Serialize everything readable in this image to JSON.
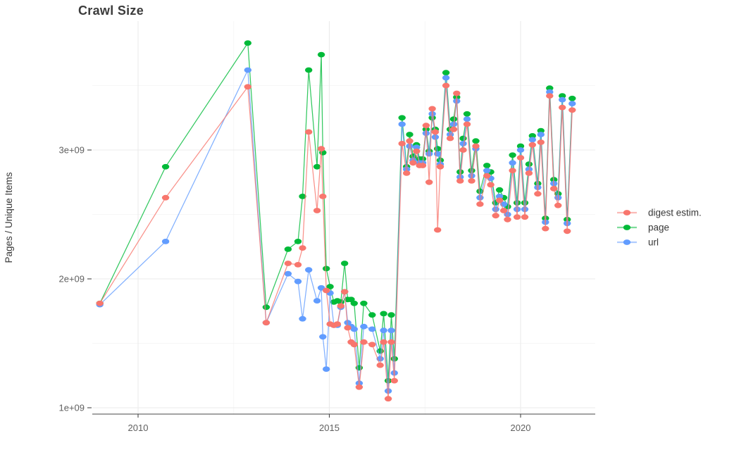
{
  "title": "Crawl Size",
  "y_axis": {
    "label": "Pages / Unique Items",
    "ticks": [
      {
        "label": "1e+09",
        "value": 1.0
      },
      {
        "label": "2e+09",
        "value": 2.0
      },
      {
        "label": "3e+09",
        "value": 3.0
      }
    ],
    "minor_ticks": [
      1.5,
      2.5,
      3.5
    ]
  },
  "x_axis": {
    "ticks": [
      {
        "label": "2010",
        "year": 2010
      },
      {
        "label": "2015",
        "year": 2015
      },
      {
        "label": "2020",
        "year": 2020
      }
    ],
    "minor_ticks": [
      2012.5,
      2017.5
    ]
  },
  "legend": {
    "position": "right",
    "items": [
      {
        "label": "digest estim.",
        "color": "#F8766D"
      },
      {
        "label": "page",
        "color": "#00BA38"
      },
      {
        "label": "url",
        "color": "#619CFF"
      }
    ]
  },
  "colors": {
    "grid_major": "#ebebeb",
    "grid_minor": "#f3f3f3",
    "axis_line": "#474747",
    "tick_mark": "#474747"
  },
  "chart_data": {
    "type": "line",
    "title": "Crawl Size",
    "xlabel": "",
    "ylabel": "Pages / Unique Items",
    "value_scale": 1000000000,
    "value_unit": "items (values given in billions, i.e. 1e+09)",
    "xlim": [
      2008.7,
      2022.0
    ],
    "ylim": [
      0.88,
      4.0
    ],
    "grid": true,
    "legend_position": "right",
    "x_years": [
      2009.0,
      2010.72,
      2012.87,
      2013.35,
      2013.92,
      2014.18,
      2014.3,
      2014.46,
      2014.68,
      2014.79,
      2014.83,
      2014.92,
      2015.02,
      2015.12,
      2015.21,
      2015.3,
      2015.4,
      2015.48,
      2015.57,
      2015.65,
      2015.78,
      2015.9,
      2016.12,
      2016.33,
      2016.42,
      2016.54,
      2016.62,
      2016.7,
      2016.9,
      2017.02,
      2017.1,
      2017.19,
      2017.28,
      2017.36,
      2017.44,
      2017.53,
      2017.61,
      2017.69,
      2017.77,
      2017.83,
      2017.9,
      2018.05,
      2018.16,
      2018.25,
      2018.33,
      2018.42,
      2018.5,
      2018.6,
      2018.72,
      2018.83,
      2018.94,
      2019.12,
      2019.22,
      2019.35,
      2019.45,
      2019.56,
      2019.66,
      2019.79,
      2019.91,
      2020.0,
      2020.11,
      2020.22,
      2020.31,
      2020.45,
      2020.53,
      2020.65,
      2020.76,
      2020.87,
      2020.98,
      2021.09,
      2021.22,
      2021.35
    ],
    "series": [
      {
        "name": "digest estim.",
        "color": "#F8766D",
        "values_e9": [
          1.81,
          2.63,
          3.49,
          1.66,
          2.12,
          2.11,
          2.24,
          3.14,
          2.53,
          3.01,
          2.64,
          1.91,
          1.65,
          1.64,
          1.65,
          1.79,
          1.9,
          1.62,
          1.51,
          1.49,
          1.16,
          1.51,
          1.49,
          1.33,
          1.51,
          1.07,
          1.51,
          1.21,
          3.05,
          2.82,
          3.07,
          2.9,
          2.99,
          2.88,
          2.88,
          3.19,
          2.75,
          3.32,
          3.14,
          2.38,
          2.87,
          3.5,
          3.09,
          3.16,
          3.44,
          2.76,
          3.0,
          3.2,
          2.76,
          3.03,
          2.58,
          2.8,
          2.73,
          2.49,
          2.61,
          2.53,
          2.46,
          2.84,
          2.48,
          2.94,
          2.48,
          2.82,
          3.04,
          2.66,
          3.06,
          2.39,
          3.42,
          2.7,
          2.57,
          3.33,
          2.37,
          3.31
        ]
      },
      {
        "name": "page",
        "color": "#00BA38",
        "values_e9": [
          1.81,
          2.87,
          3.83,
          1.78,
          2.23,
          2.29,
          2.64,
          3.62,
          2.87,
          3.74,
          2.98,
          2.08,
          1.94,
          1.82,
          1.83,
          1.82,
          2.12,
          1.84,
          1.84,
          1.81,
          1.31,
          1.81,
          1.72,
          1.44,
          1.73,
          1.21,
          1.72,
          1.38,
          3.25,
          2.87,
          3.12,
          2.95,
          3.04,
          2.93,
          2.93,
          3.16,
          2.99,
          3.25,
          3.16,
          3.01,
          2.92,
          3.6,
          3.16,
          3.24,
          3.41,
          2.83,
          3.09,
          3.28,
          2.84,
          3.07,
          2.68,
          2.88,
          2.83,
          2.59,
          2.69,
          2.63,
          2.56,
          2.96,
          2.59,
          3.03,
          2.59,
          2.89,
          3.11,
          2.74,
          3.15,
          2.47,
          3.48,
          2.77,
          2.66,
          3.42,
          2.46,
          3.4
        ]
      },
      {
        "name": "url",
        "color": "#619CFF",
        "values_e9": [
          1.8,
          2.29,
          3.62,
          1.66,
          2.04,
          1.98,
          1.69,
          2.07,
          1.83,
          1.93,
          1.55,
          1.3,
          1.89,
          1.64,
          1.64,
          1.78,
          1.9,
          1.66,
          1.63,
          1.61,
          1.19,
          1.63,
          1.61,
          1.38,
          1.6,
          1.13,
          1.6,
          1.27,
          3.2,
          2.85,
          3.03,
          2.92,
          3.02,
          2.9,
          2.9,
          3.13,
          2.97,
          3.28,
          3.1,
          2.97,
          2.89,
          3.56,
          3.12,
          3.2,
          3.38,
          2.79,
          3.05,
          3.24,
          2.8,
          3.01,
          2.63,
          2.84,
          2.78,
          2.54,
          2.64,
          2.58,
          2.5,
          2.9,
          2.54,
          3.0,
          2.54,
          2.85,
          3.08,
          2.71,
          3.12,
          2.44,
          3.45,
          2.74,
          2.63,
          3.39,
          2.43,
          3.36
        ]
      }
    ]
  }
}
